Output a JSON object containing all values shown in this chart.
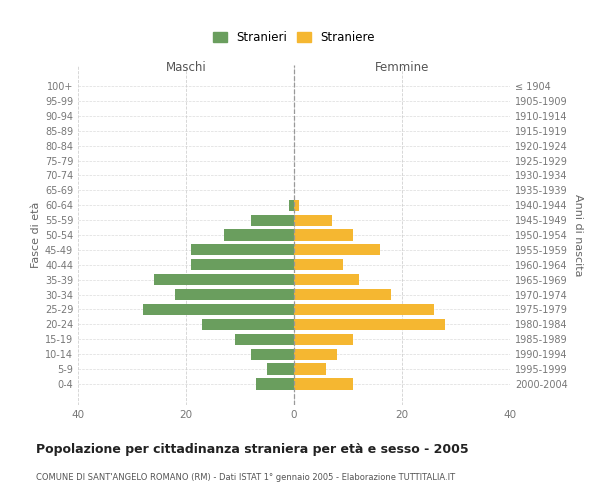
{
  "age_groups": [
    "100+",
    "95-99",
    "90-94",
    "85-89",
    "80-84",
    "75-79",
    "70-74",
    "65-69",
    "60-64",
    "55-59",
    "50-54",
    "45-49",
    "40-44",
    "35-39",
    "30-34",
    "25-29",
    "20-24",
    "15-19",
    "10-14",
    "5-9",
    "0-4"
  ],
  "birth_years": [
    "≤ 1904",
    "1905-1909",
    "1910-1914",
    "1915-1919",
    "1920-1924",
    "1925-1929",
    "1930-1934",
    "1935-1939",
    "1940-1944",
    "1945-1949",
    "1950-1954",
    "1955-1959",
    "1960-1964",
    "1965-1969",
    "1970-1974",
    "1975-1979",
    "1980-1984",
    "1985-1989",
    "1990-1994",
    "1995-1999",
    "2000-2004"
  ],
  "maschi": [
    0,
    0,
    0,
    0,
    0,
    0,
    0,
    0,
    1,
    8,
    13,
    19,
    19,
    26,
    22,
    28,
    17,
    11,
    8,
    5,
    7
  ],
  "femmine": [
    0,
    0,
    0,
    0,
    0,
    0,
    0,
    0,
    1,
    7,
    11,
    16,
    9,
    12,
    18,
    26,
    28,
    11,
    8,
    6,
    11
  ],
  "maschi_color": "#6a9e5e",
  "femmine_color": "#f5b731",
  "grid_color": "#cccccc",
  "title": "Popolazione per cittadinanza straniera per età e sesso - 2005",
  "subtitle": "COMUNE DI SANT'ANGELO ROMANO (RM) - Dati ISTAT 1° gennaio 2005 - Elaborazione TUTTITALIA.IT",
  "xlabel_left": "Maschi",
  "xlabel_right": "Femmine",
  "ylabel_left": "Fasce di età",
  "ylabel_right": "Anni di nascita",
  "legend_stranieri": "Stranieri",
  "legend_straniere": "Straniere",
  "xlim": 40,
  "bar_height": 0.75
}
